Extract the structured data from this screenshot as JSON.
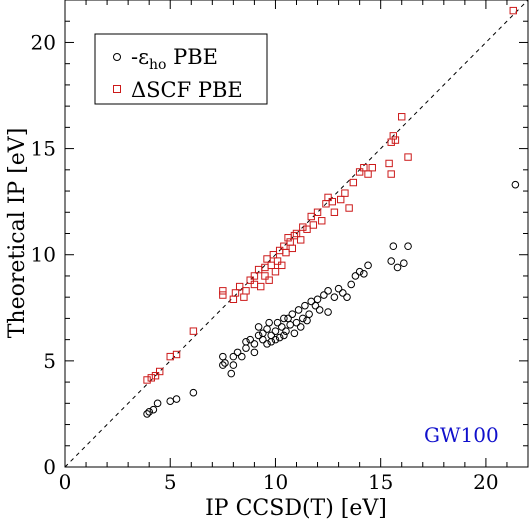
{
  "chart_data": {
    "type": "scatter",
    "xlabel": "IP CCSD(T) [eV]",
    "ylabel": "Theoretical IP [eV]",
    "xlim": [
      0,
      22
    ],
    "ylim": [
      0,
      22
    ],
    "xticks": [
      0,
      5,
      10,
      15,
      20
    ],
    "yticks": [
      0,
      5,
      10,
      15,
      20
    ],
    "minor_tick_step": 1,
    "grid": false,
    "legend_position": "top-left",
    "annotation": "GW100",
    "reference_line": {
      "style": "dashed",
      "from": [
        0,
        0
      ],
      "to": [
        22,
        22
      ]
    },
    "series": [
      {
        "name_prefix": "-ε",
        "name_subscript": "ho",
        "name_suffix": " PBE",
        "marker": "circle",
        "color": "#000000",
        "points": [
          [
            3.9,
            2.5
          ],
          [
            4.0,
            2.6
          ],
          [
            4.2,
            2.7
          ],
          [
            4.4,
            3.0
          ],
          [
            5.0,
            3.1
          ],
          [
            5.3,
            3.2
          ],
          [
            6.1,
            3.5
          ],
          [
            7.5,
            4.8
          ],
          [
            7.5,
            5.2
          ],
          [
            7.6,
            4.9
          ],
          [
            7.9,
            4.4
          ],
          [
            8.0,
            5.2
          ],
          [
            8.0,
            4.8
          ],
          [
            8.2,
            5.4
          ],
          [
            8.4,
            5.2
          ],
          [
            8.6,
            5.6
          ],
          [
            8.6,
            5.9
          ],
          [
            8.8,
            6.0
          ],
          [
            9.0,
            5.8
          ],
          [
            9.0,
            5.4
          ],
          [
            9.2,
            6.2
          ],
          [
            9.2,
            6.6
          ],
          [
            9.4,
            6.0
          ],
          [
            9.4,
            6.3
          ],
          [
            9.6,
            5.8
          ],
          [
            9.6,
            6.5
          ],
          [
            9.7,
            6.8
          ],
          [
            9.8,
            5.9
          ],
          [
            9.8,
            6.2
          ],
          [
            10.0,
            6.4
          ],
          [
            10.0,
            6.0
          ],
          [
            10.1,
            6.8
          ],
          [
            10.2,
            6.1
          ],
          [
            10.3,
            6.6
          ],
          [
            10.4,
            7.0
          ],
          [
            10.4,
            6.2
          ],
          [
            10.5,
            6.4
          ],
          [
            10.6,
            7.0
          ],
          [
            10.7,
            6.7
          ],
          [
            10.8,
            7.2
          ],
          [
            10.9,
            6.3
          ],
          [
            11.0,
            6.8
          ],
          [
            11.1,
            7.4
          ],
          [
            11.2,
            6.6
          ],
          [
            11.3,
            7.0
          ],
          [
            11.4,
            7.6
          ],
          [
            11.5,
            6.9
          ],
          [
            11.6,
            7.2
          ],
          [
            11.7,
            7.8
          ],
          [
            11.9,
            7.6
          ],
          [
            12.0,
            7.9
          ],
          [
            12.1,
            7.4
          ],
          [
            12.3,
            8.1
          ],
          [
            12.5,
            8.3
          ],
          [
            12.5,
            7.3
          ],
          [
            12.8,
            8.0
          ],
          [
            13.0,
            8.4
          ],
          [
            13.2,
            8.2
          ],
          [
            13.4,
            8.0
          ],
          [
            13.6,
            8.6
          ],
          [
            13.8,
            9.0
          ],
          [
            14.0,
            9.2
          ],
          [
            14.2,
            9.1
          ],
          [
            14.4,
            9.5
          ],
          [
            15.5,
            9.7
          ],
          [
            15.6,
            10.4
          ],
          [
            15.8,
            9.4
          ],
          [
            16.1,
            9.6
          ],
          [
            16.3,
            10.4
          ],
          [
            21.4,
            13.3
          ]
        ]
      },
      {
        "name": "ΔSCF PBE",
        "marker": "square",
        "color": "#cc1a1a",
        "points": [
          [
            3.9,
            4.1
          ],
          [
            4.1,
            4.2
          ],
          [
            4.3,
            4.3
          ],
          [
            4.5,
            4.5
          ],
          [
            5.0,
            5.2
          ],
          [
            5.3,
            5.3
          ],
          [
            6.1,
            6.4
          ],
          [
            7.5,
            8.1
          ],
          [
            7.5,
            8.3
          ],
          [
            8.0,
            7.9
          ],
          [
            8.1,
            8.2
          ],
          [
            8.3,
            8.5
          ],
          [
            8.5,
            8.0
          ],
          [
            8.6,
            8.3
          ],
          [
            8.8,
            8.8
          ],
          [
            9.0,
            8.6
          ],
          [
            9.0,
            9.0
          ],
          [
            9.2,
            9.3
          ],
          [
            9.3,
            8.5
          ],
          [
            9.5,
            9.0
          ],
          [
            9.5,
            9.4
          ],
          [
            9.6,
            9.8
          ],
          [
            9.7,
            8.8
          ],
          [
            9.8,
            9.5
          ],
          [
            9.9,
            10.0
          ],
          [
            10.0,
            9.2
          ],
          [
            10.1,
            9.7
          ],
          [
            10.2,
            10.2
          ],
          [
            10.3,
            9.5
          ],
          [
            10.4,
            10.4
          ],
          [
            10.5,
            10.1
          ],
          [
            10.6,
            10.8
          ],
          [
            10.7,
            10.6
          ],
          [
            10.8,
            10.3
          ],
          [
            10.9,
            10.9
          ],
          [
            11.0,
            11.0
          ],
          [
            11.2,
            10.7
          ],
          [
            11.3,
            11.3
          ],
          [
            11.5,
            11.2
          ],
          [
            11.7,
            11.8
          ],
          [
            11.8,
            11.4
          ],
          [
            12.0,
            12.0
          ],
          [
            12.2,
            11.6
          ],
          [
            12.4,
            12.4
          ],
          [
            12.5,
            12.7
          ],
          [
            12.7,
            12.5
          ],
          [
            12.8,
            12.0
          ],
          [
            13.1,
            12.6
          ],
          [
            13.3,
            12.9
          ],
          [
            13.5,
            12.2
          ],
          [
            13.7,
            13.4
          ],
          [
            14.0,
            13.9
          ],
          [
            14.2,
            14.1
          ],
          [
            14.4,
            13.8
          ],
          [
            14.6,
            14.1
          ],
          [
            15.4,
            14.3
          ],
          [
            15.5,
            13.8
          ],
          [
            15.5,
            15.3
          ],
          [
            15.6,
            15.6
          ],
          [
            15.7,
            15.4
          ],
          [
            16.0,
            16.5
          ],
          [
            16.3,
            14.6
          ],
          [
            21.3,
            21.5
          ]
        ]
      }
    ]
  }
}
